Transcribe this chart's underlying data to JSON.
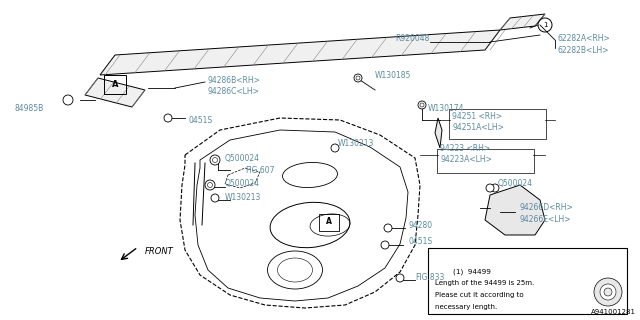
{
  "bg_color": "#ffffff",
  "line_color": "#000000",
  "text_color": "#5a8a9f",
  "dark_color": "#000000",
  "diagram_id": "A941001281",
  "note_lines": [
    "(1)  94499",
    "Length of the 94499 is 25m.",
    "Please cut it according to",
    "necessary length."
  ],
  "font_size": 5.5
}
